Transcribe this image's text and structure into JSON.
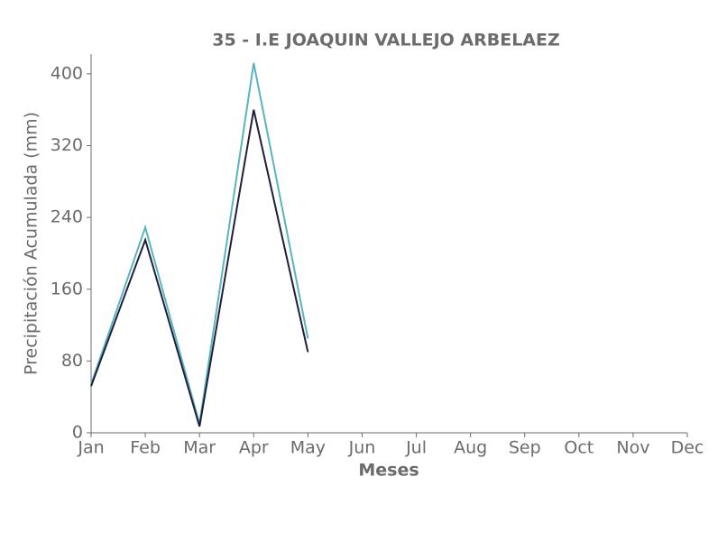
{
  "chart_data": {
    "type": "line",
    "title": "35 - I.E JOAQUIN VALLEJO ARBELAEZ",
    "x_label": "Meses",
    "y_label": "Precipitación Acumulada (mm)",
    "categories": [
      "Jan",
      "Feb",
      "Mar",
      "Apr",
      "May",
      "Jun",
      "Jul",
      "Aug",
      "Sep",
      "Oct",
      "Nov",
      "Dec"
    ],
    "series": [
      {
        "color": "#5ab4be",
        "values": [
          54,
          229,
          10,
          412,
          105,
          null,
          null,
          null,
          null,
          null,
          null,
          null
        ]
      },
      {
        "color": "#1f1f3d",
        "values": [
          52,
          215,
          7,
          360,
          90,
          null,
          null,
          null,
          null,
          null,
          null,
          null
        ]
      }
    ],
    "ylim": [
      0,
      422
    ],
    "yticks": [
      0,
      80,
      160,
      240,
      320,
      400
    ],
    "grid": false
  }
}
